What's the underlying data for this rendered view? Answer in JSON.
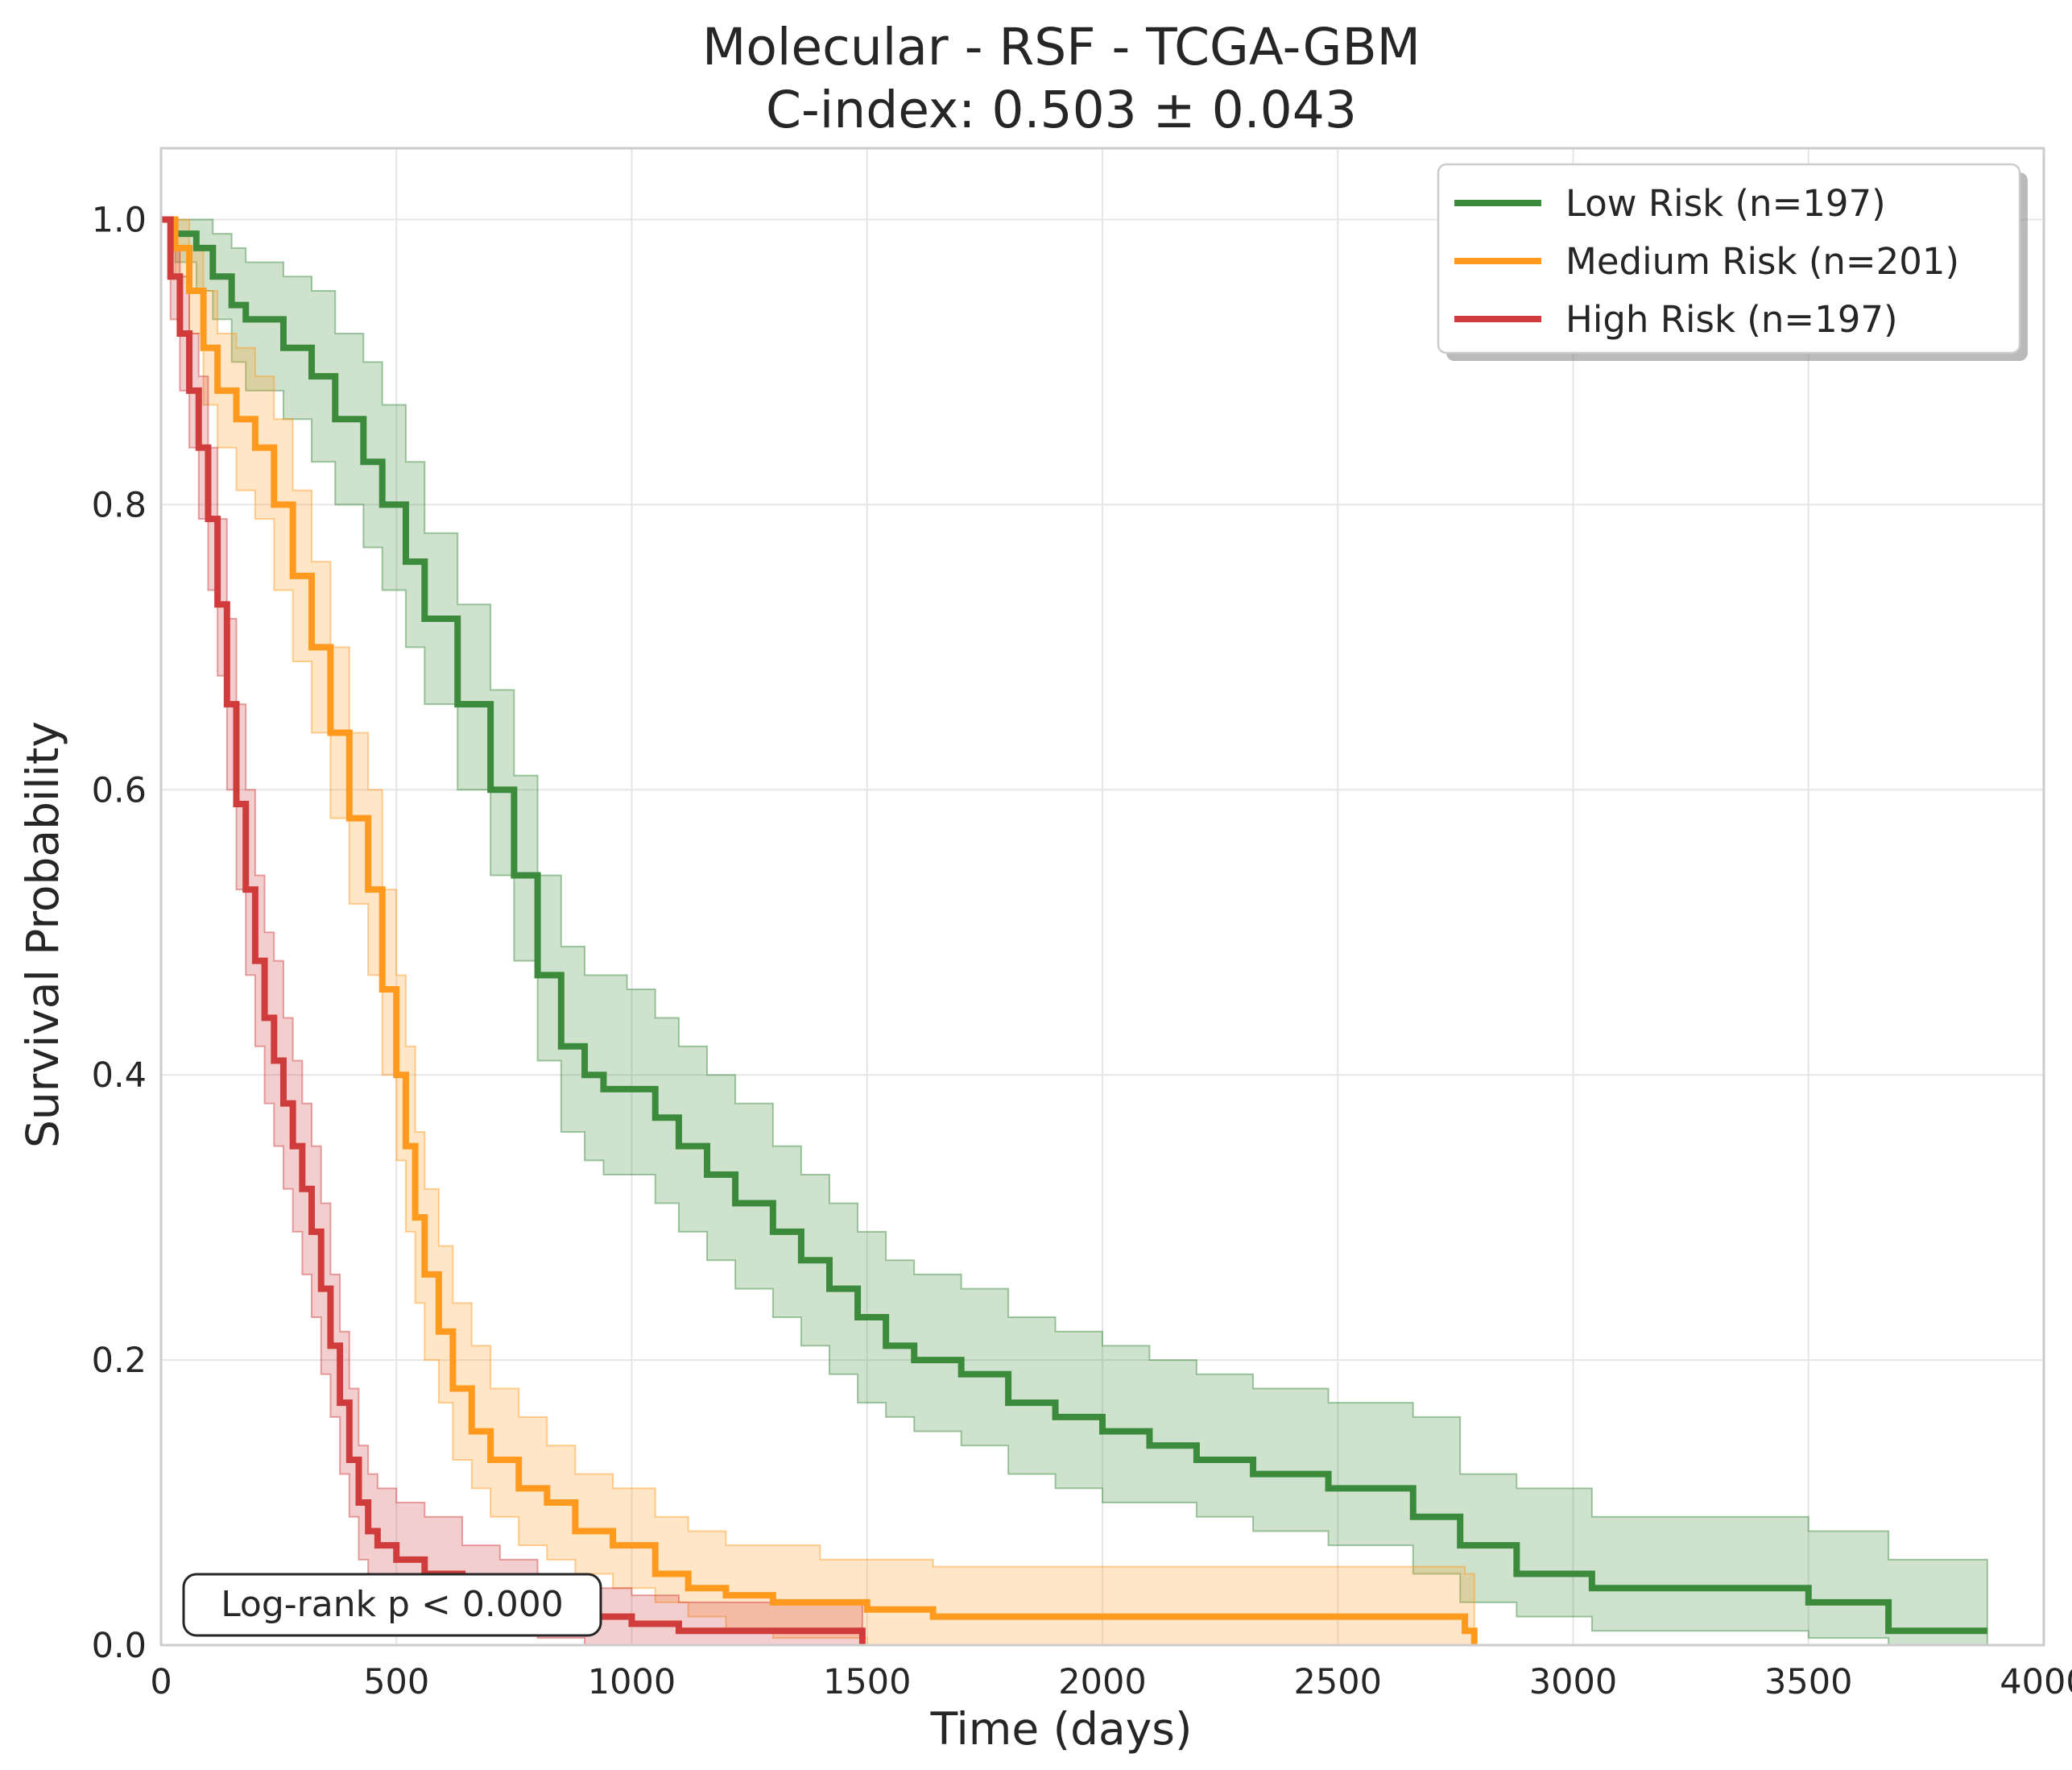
{
  "chart_data": {
    "type": "line",
    "subtype": "kaplan-meier",
    "title": "Molecular - RSF - TCGA-GBM",
    "subtitle": "C-index: 0.503 ± 0.043",
    "xlabel": "Time (days)",
    "ylabel": "Survival Probability",
    "xlim": [
      0,
      4000
    ],
    "ylim": [
      0,
      1.05
    ],
    "xticks": [
      0,
      500,
      1000,
      1500,
      2000,
      2500,
      3000,
      3500,
      4000
    ],
    "xtick_labels": [
      "0",
      "500",
      "1000",
      "1500",
      "2000",
      "2500",
      "3000",
      "3500",
      "4000"
    ],
    "yticks": [
      0.0,
      0.2,
      0.4,
      0.6,
      0.8,
      1.0
    ],
    "ytick_labels": [
      "0.0",
      "0.2",
      "0.4",
      "0.6",
      "0.8",
      "1.0"
    ],
    "grid": true,
    "legend_position": "top-right",
    "annotation": "Log-rank p < 0.000",
    "annotation_position": "bottom-left",
    "series": [
      {
        "name": "Low Risk (n=197)",
        "color": "#3c8a3c",
        "x": [
          0,
          30,
          75,
          110,
          150,
          180,
          260,
          320,
          370,
          430,
          470,
          520,
          560,
          630,
          700,
          750,
          800,
          850,
          900,
          940,
          990,
          1050,
          1100,
          1160,
          1220,
          1300,
          1360,
          1420,
          1480,
          1540,
          1600,
          1700,
          1800,
          1900,
          2000,
          2100,
          2200,
          2320,
          2480,
          2660,
          2760,
          2880,
          3040,
          3200,
          3350,
          3500,
          3670,
          3880
        ],
        "y": [
          1.0,
          0.99,
          0.98,
          0.96,
          0.94,
          0.93,
          0.91,
          0.89,
          0.86,
          0.83,
          0.8,
          0.76,
          0.72,
          0.66,
          0.6,
          0.54,
          0.47,
          0.42,
          0.4,
          0.39,
          0.39,
          0.37,
          0.35,
          0.33,
          0.31,
          0.29,
          0.27,
          0.25,
          0.23,
          0.21,
          0.2,
          0.19,
          0.17,
          0.16,
          0.15,
          0.14,
          0.13,
          0.12,
          0.11,
          0.09,
          0.07,
          0.05,
          0.04,
          0.04,
          0.04,
          0.03,
          0.01,
          0.01
        ],
        "ci_lower": [
          1.0,
          0.97,
          0.95,
          0.93,
          0.9,
          0.88,
          0.86,
          0.83,
          0.8,
          0.77,
          0.74,
          0.7,
          0.66,
          0.6,
          0.54,
          0.48,
          0.41,
          0.36,
          0.34,
          0.33,
          0.33,
          0.31,
          0.29,
          0.27,
          0.25,
          0.23,
          0.21,
          0.19,
          0.17,
          0.16,
          0.15,
          0.14,
          0.12,
          0.11,
          0.1,
          0.1,
          0.09,
          0.08,
          0.07,
          0.05,
          0.03,
          0.02,
          0.01,
          0.01,
          0.01,
          0.005,
          0.0,
          0.0
        ],
        "ci_upper": [
          1.0,
          1.0,
          1.0,
          0.99,
          0.98,
          0.97,
          0.96,
          0.95,
          0.92,
          0.9,
          0.87,
          0.83,
          0.78,
          0.73,
          0.67,
          0.61,
          0.54,
          0.49,
          0.47,
          0.47,
          0.46,
          0.44,
          0.42,
          0.4,
          0.38,
          0.35,
          0.33,
          0.31,
          0.29,
          0.27,
          0.26,
          0.25,
          0.23,
          0.22,
          0.21,
          0.2,
          0.19,
          0.18,
          0.17,
          0.16,
          0.12,
          0.11,
          0.09,
          0.09,
          0.09,
          0.08,
          0.06,
          0.06
        ]
      },
      {
        "name": "Medium Risk (n=201)",
        "color": "#ff9a1f",
        "x": [
          0,
          30,
          60,
          90,
          120,
          160,
          200,
          240,
          280,
          320,
          360,
          400,
          440,
          470,
          500,
          520,
          540,
          560,
          590,
          620,
          660,
          700,
          760,
          820,
          880,
          960,
          1050,
          1120,
          1200,
          1300,
          1400,
          1500,
          1640,
          1800,
          2000,
          2200,
          2400,
          2600,
          2770,
          2790
        ],
        "y": [
          1.0,
          0.98,
          0.95,
          0.91,
          0.88,
          0.86,
          0.84,
          0.8,
          0.75,
          0.7,
          0.64,
          0.58,
          0.53,
          0.46,
          0.4,
          0.35,
          0.3,
          0.26,
          0.22,
          0.18,
          0.15,
          0.13,
          0.11,
          0.1,
          0.08,
          0.07,
          0.05,
          0.04,
          0.035,
          0.03,
          0.03,
          0.025,
          0.02,
          0.02,
          0.02,
          0.02,
          0.02,
          0.02,
          0.01,
          0.0
        ],
        "ci_lower": [
          1.0,
          0.96,
          0.92,
          0.87,
          0.84,
          0.81,
          0.79,
          0.74,
          0.69,
          0.64,
          0.58,
          0.52,
          0.47,
          0.4,
          0.34,
          0.29,
          0.24,
          0.2,
          0.17,
          0.13,
          0.11,
          0.09,
          0.07,
          0.06,
          0.05,
          0.04,
          0.03,
          0.02,
          0.01,
          0.005,
          0.005,
          0.0,
          0.0,
          0.0,
          0.0,
          0.0,
          0.0,
          0.0,
          0.0,
          0.0
        ],
        "ci_upper": [
          1.0,
          1.0,
          0.98,
          0.95,
          0.92,
          0.91,
          0.89,
          0.86,
          0.81,
          0.76,
          0.7,
          0.64,
          0.6,
          0.53,
          0.47,
          0.42,
          0.36,
          0.32,
          0.28,
          0.24,
          0.21,
          0.18,
          0.16,
          0.14,
          0.12,
          0.11,
          0.09,
          0.08,
          0.07,
          0.07,
          0.06,
          0.06,
          0.055,
          0.055,
          0.055,
          0.055,
          0.055,
          0.055,
          0.05,
          0.0
        ]
      },
      {
        "name": "High Risk (n=197)",
        "color": "#d03c3c",
        "x": [
          0,
          20,
          40,
          60,
          80,
          100,
          120,
          140,
          160,
          180,
          200,
          220,
          240,
          260,
          280,
          300,
          320,
          340,
          360,
          380,
          400,
          420,
          440,
          460,
          500,
          560,
          640,
          720,
          800,
          900,
          1000,
          1100,
          1250,
          1400,
          1490
        ],
        "y": [
          1.0,
          0.96,
          0.92,
          0.88,
          0.84,
          0.79,
          0.73,
          0.66,
          0.59,
          0.53,
          0.48,
          0.44,
          0.41,
          0.38,
          0.35,
          0.32,
          0.29,
          0.25,
          0.21,
          0.17,
          0.13,
          0.1,
          0.08,
          0.07,
          0.06,
          0.05,
          0.04,
          0.03,
          0.025,
          0.02,
          0.015,
          0.01,
          0.01,
          0.01,
          0.0
        ],
        "ci_lower": [
          1.0,
          0.93,
          0.88,
          0.84,
          0.79,
          0.74,
          0.68,
          0.6,
          0.53,
          0.47,
          0.42,
          0.38,
          0.35,
          0.32,
          0.29,
          0.26,
          0.23,
          0.19,
          0.16,
          0.12,
          0.09,
          0.06,
          0.05,
          0.04,
          0.03,
          0.02,
          0.015,
          0.01,
          0.005,
          0.0,
          0.0,
          0.0,
          0.0,
          0.0,
          0.0
        ],
        "ci_upper": [
          1.0,
          0.98,
          0.96,
          0.92,
          0.89,
          0.84,
          0.79,
          0.72,
          0.66,
          0.6,
          0.54,
          0.5,
          0.48,
          0.44,
          0.41,
          0.38,
          0.35,
          0.31,
          0.26,
          0.22,
          0.18,
          0.14,
          0.12,
          0.11,
          0.1,
          0.09,
          0.07,
          0.06,
          0.05,
          0.04,
          0.035,
          0.03,
          0.03,
          0.03,
          0.0
        ]
      }
    ]
  }
}
